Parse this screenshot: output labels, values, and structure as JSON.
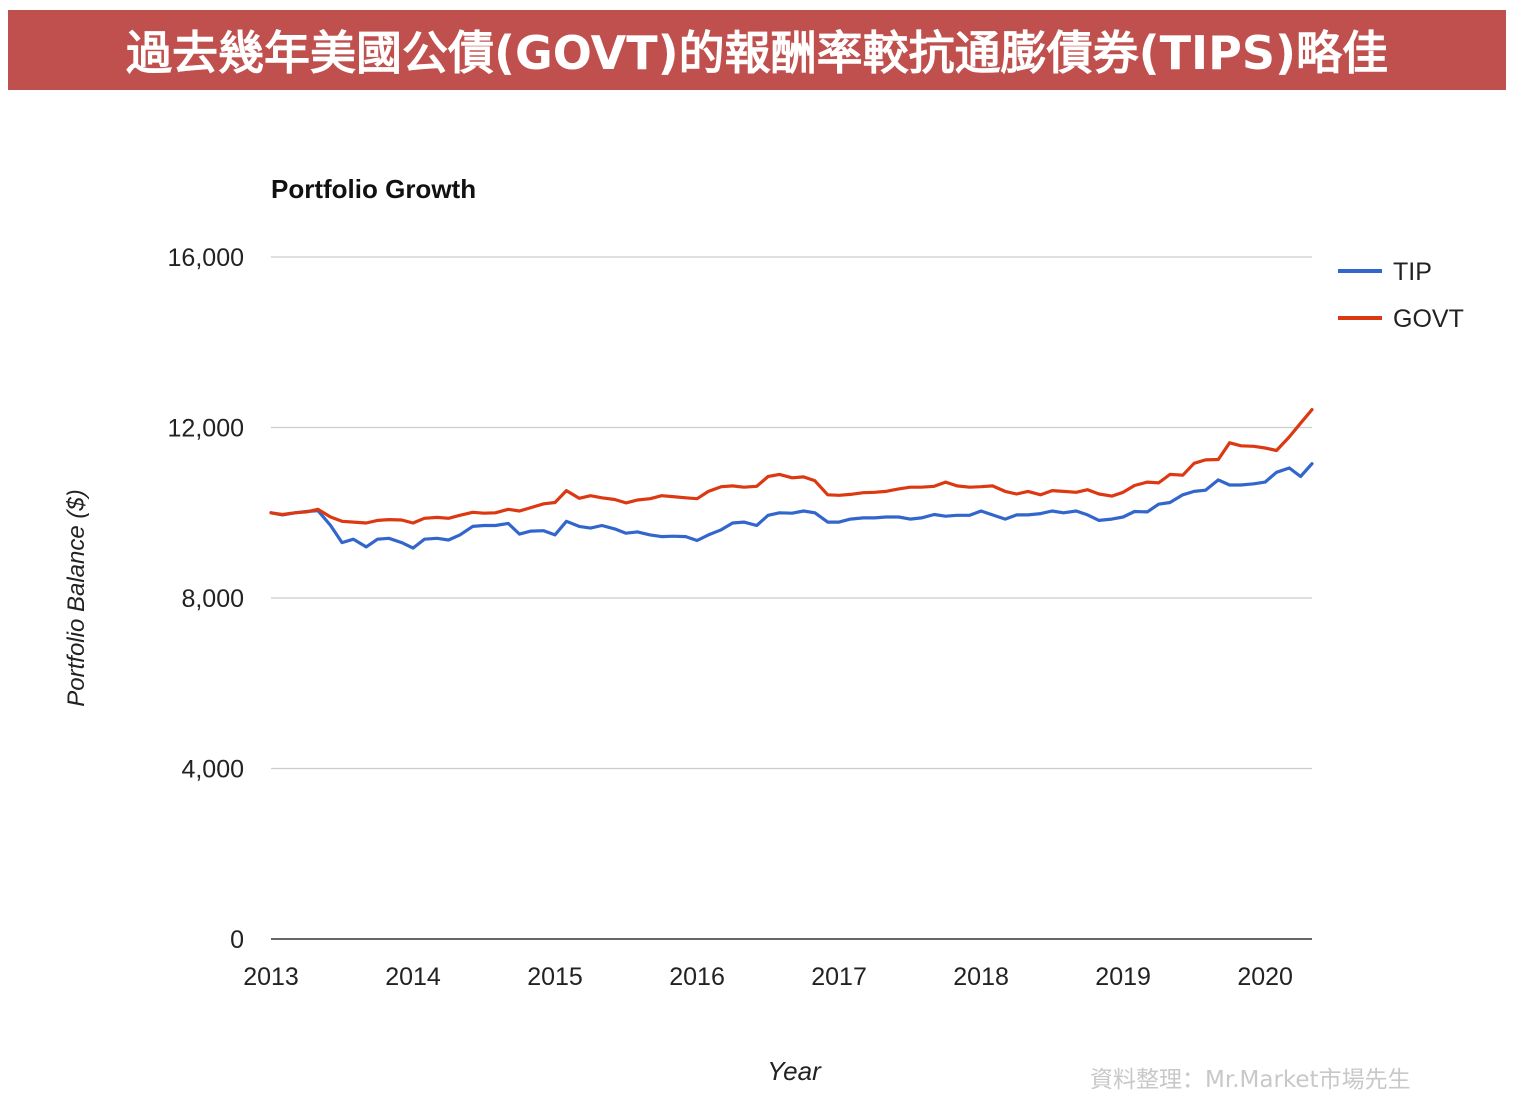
{
  "banner": {
    "title": "過去幾年美國公債(GOVT)的報酬率較抗通膨債券(TIPS)略佳"
  },
  "watermark": "資料整理：Mr.Market市場先生",
  "colors": {
    "banner_bg": "#c0504d",
    "tip": "#3366cc",
    "govt": "#dc3912",
    "grid": "#cccccc"
  },
  "chart_data": {
    "type": "line",
    "title": "Portfolio Growth",
    "xlabel": "Year",
    "ylabel": "Portfolio Balance ($)",
    "xlim": [
      2013.0,
      2020.33
    ],
    "ylim": [
      0,
      16000
    ],
    "yticks": [
      0,
      4000,
      8000,
      12000,
      16000
    ],
    "ytick_labels": [
      "0",
      "4,000",
      "8,000",
      "12,000",
      "16,000"
    ],
    "xticks": [
      2013,
      2014,
      2015,
      2016,
      2017,
      2018,
      2019,
      2020
    ],
    "xtick_labels": [
      "2013",
      "2014",
      "2015",
      "2016",
      "2017",
      "2018",
      "2019",
      "2020"
    ],
    "grid": true,
    "legend_position": "top-right",
    "series": [
      {
        "name": "TIP",
        "color": "#3366cc",
        "x": [
          2013.0,
          2013.08,
          2013.17,
          2013.25,
          2013.33,
          2013.42,
          2013.5,
          2013.58,
          2013.67,
          2013.75,
          2013.83,
          2013.92,
          2014.0,
          2014.08,
          2014.17,
          2014.25,
          2014.33,
          2014.42,
          2014.5,
          2014.58,
          2014.67,
          2014.75,
          2014.83,
          2014.92,
          2015.0,
          2015.08,
          2015.17,
          2015.25,
          2015.33,
          2015.42,
          2015.5,
          2015.58,
          2015.67,
          2015.75,
          2015.83,
          2015.92,
          2016.0,
          2016.08,
          2016.17,
          2016.25,
          2016.33,
          2016.42,
          2016.5,
          2016.58,
          2016.67,
          2016.75,
          2016.83,
          2016.92,
          2017.0,
          2017.08,
          2017.17,
          2017.25,
          2017.33,
          2017.42,
          2017.5,
          2017.58,
          2017.67,
          2017.75,
          2017.83,
          2017.92,
          2018.0,
          2018.08,
          2018.17,
          2018.25,
          2018.33,
          2018.42,
          2018.5,
          2018.58,
          2018.67,
          2018.75,
          2018.83,
          2018.92,
          2019.0,
          2019.08,
          2019.17,
          2019.25,
          2019.33,
          2019.42,
          2019.5,
          2019.58,
          2019.67,
          2019.75,
          2019.83,
          2019.92,
          2020.0,
          2020.08,
          2020.17,
          2020.25,
          2020.33
        ],
        "values": [
          10000,
          9950,
          10000,
          10030,
          10050,
          9700,
          9300,
          9380,
          9200,
          9380,
          9400,
          9300,
          9170,
          9380,
          9400,
          9360,
          9480,
          9680,
          9700,
          9700,
          9750,
          9500,
          9570,
          9580,
          9480,
          9800,
          9680,
          9640,
          9700,
          9620,
          9520,
          9550,
          9480,
          9440,
          9450,
          9440,
          9350,
          9480,
          9600,
          9760,
          9780,
          9700,
          9940,
          10000,
          9990,
          10040,
          10000,
          9780,
          9780,
          9850,
          9880,
          9880,
          9900,
          9900,
          9850,
          9880,
          9960,
          9920,
          9940,
          9940,
          10040,
          9950,
          9850,
          9950,
          9950,
          9980,
          10040,
          10000,
          10040,
          9950,
          9820,
          9850,
          9900,
          10030,
          10020,
          10200,
          10240,
          10420,
          10500,
          10530,
          10770,
          10650,
          10650,
          10680,
          10720,
          10950,
          11050,
          10850,
          11150
        ]
      },
      {
        "name": "GOVT",
        "color": "#dc3912",
        "x": [
          2013.0,
          2013.08,
          2013.17,
          2013.25,
          2013.33,
          2013.42,
          2013.5,
          2013.58,
          2013.67,
          2013.75,
          2013.83,
          2013.92,
          2014.0,
          2014.08,
          2014.17,
          2014.25,
          2014.33,
          2014.42,
          2014.5,
          2014.58,
          2014.67,
          2014.75,
          2014.83,
          2014.92,
          2015.0,
          2015.08,
          2015.17,
          2015.25,
          2015.33,
          2015.42,
          2015.5,
          2015.58,
          2015.67,
          2015.75,
          2015.83,
          2015.92,
          2016.0,
          2016.08,
          2016.17,
          2016.25,
          2016.33,
          2016.42,
          2016.5,
          2016.58,
          2016.67,
          2016.75,
          2016.83,
          2016.92,
          2017.0,
          2017.08,
          2017.17,
          2017.25,
          2017.33,
          2017.42,
          2017.5,
          2017.58,
          2017.67,
          2017.75,
          2017.83,
          2017.92,
          2018.0,
          2018.08,
          2018.17,
          2018.25,
          2018.33,
          2018.42,
          2018.5,
          2018.58,
          2018.67,
          2018.75,
          2018.83,
          2018.92,
          2019.0,
          2019.08,
          2019.17,
          2019.25,
          2019.33,
          2019.42,
          2019.5,
          2019.58,
          2019.67,
          2019.75,
          2019.83,
          2019.92,
          2020.0,
          2020.08,
          2020.17,
          2020.25,
          2020.33
        ],
        "values": [
          10000,
          9960,
          10000,
          10020,
          10080,
          9900,
          9800,
          9780,
          9760,
          9820,
          9840,
          9830,
          9760,
          9870,
          9890,
          9870,
          9940,
          10010,
          9990,
          10000,
          10080,
          10040,
          10120,
          10210,
          10240,
          10520,
          10340,
          10400,
          10350,
          10310,
          10230,
          10300,
          10330,
          10400,
          10380,
          10350,
          10330,
          10500,
          10610,
          10630,
          10600,
          10620,
          10850,
          10900,
          10820,
          10840,
          10750,
          10420,
          10410,
          10430,
          10470,
          10480,
          10500,
          10560,
          10600,
          10600,
          10620,
          10720,
          10630,
          10600,
          10610,
          10630,
          10500,
          10440,
          10500,
          10420,
          10520,
          10500,
          10480,
          10540,
          10440,
          10390,
          10480,
          10640,
          10720,
          10700,
          10900,
          10880,
          11160,
          11240,
          11250,
          11640,
          11570,
          11560,
          11520,
          11460,
          11780,
          12100,
          12420
        ]
      }
    ]
  }
}
